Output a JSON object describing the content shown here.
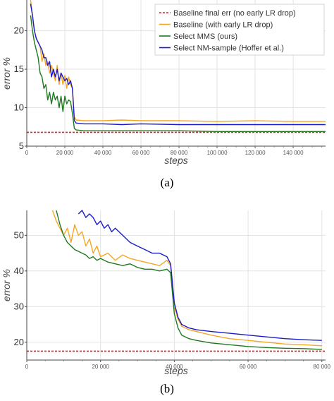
{
  "chart_data": [
    {
      "type": "line",
      "panel_label": "(a)",
      "xlabel": "steps",
      "ylabel": "error %",
      "xlim": [
        0,
        157000
      ],
      "ylim": [
        5,
        24
      ],
      "x_ticks": [
        0,
        20000,
        40000,
        60000,
        80000,
        100000,
        120000,
        140000
      ],
      "x_tick_labels": [
        "0",
        "20 000",
        "40 000",
        "60 000",
        "80 000",
        "100 000",
        "120 000",
        "140 000"
      ],
      "y_ticks": [
        5,
        10,
        15,
        20
      ],
      "y_tick_labels": [
        "5",
        "10",
        "15",
        "20"
      ],
      "grid": true,
      "legend_position": "top-right",
      "series": [
        {
          "name": "Baseline final err (no early LR drop)",
          "color": "#d62728",
          "dashed": true,
          "x": [
            0,
            157000
          ],
          "values": [
            6.8,
            6.8
          ]
        },
        {
          "name": "Baseline (with early LR drop)",
          "color": "#f5a623",
          "x": [
            2000,
            3000,
            4000,
            5000,
            6000,
            7000,
            8000,
            9000,
            10000,
            11000,
            12000,
            13000,
            14000,
            15000,
            16000,
            17000,
            18000,
            19000,
            20000,
            21000,
            22000,
            23000,
            24000,
            25000,
            26000,
            30000,
            40000,
            50000,
            60000,
            80000,
            100000,
            120000,
            140000,
            157000
          ],
          "values": [
            24,
            22,
            20,
            19,
            18.5,
            18,
            16,
            17,
            15.5,
            16,
            14.5,
            15.5,
            14.5,
            13.5,
            15.5,
            13,
            14.5,
            13,
            14.2,
            12.5,
            14,
            13,
            12.5,
            8.8,
            8.4,
            8.3,
            8.3,
            8.4,
            8.3,
            8.3,
            8.2,
            8.3,
            8.2,
            8.2
          ]
        },
        {
          "name": "Select MMS (ours)",
          "color": "#1e7a1e",
          "x": [
            2000,
            3000,
            4000,
            5000,
            6000,
            7000,
            8000,
            9000,
            10000,
            11000,
            12000,
            13000,
            14000,
            15000,
            16000,
            17000,
            18000,
            19000,
            20000,
            21000,
            22000,
            23000,
            24000,
            25000,
            26000,
            30000,
            40000,
            50000,
            60000,
            80000,
            100000,
            120000,
            140000,
            157000
          ],
          "values": [
            22,
            20,
            18.5,
            17.5,
            16.5,
            14.5,
            14,
            12.5,
            13,
            11,
            12,
            10.5,
            12,
            11,
            11.5,
            10,
            11.5,
            9.5,
            11.5,
            10.5,
            11,
            10.8,
            9.2,
            7.3,
            7.1,
            7.0,
            7.0,
            7.0,
            7.0,
            7.0,
            6.9,
            6.9,
            6.9,
            6.9
          ]
        },
        {
          "name": "Select NM-sample (Hoffer et al.)",
          "color": "#1a1ac8",
          "x": [
            2000,
            3000,
            4000,
            5000,
            6000,
            7000,
            8000,
            9000,
            10000,
            11000,
            12000,
            13000,
            14000,
            15000,
            16000,
            17000,
            18000,
            19000,
            20000,
            21000,
            22000,
            23000,
            24000,
            25000,
            26000,
            30000,
            40000,
            50000,
            60000,
            80000,
            100000,
            120000,
            140000,
            157000
          ],
          "values": [
            23.5,
            22,
            20,
            19,
            18.5,
            18,
            17.5,
            16.5,
            16.5,
            15.5,
            16,
            14,
            15,
            14,
            15,
            13.5,
            14.5,
            14,
            13.5,
            13.8,
            13,
            13.5,
            12.5,
            8.3,
            8.0,
            7.9,
            7.9,
            7.8,
            7.9,
            7.8,
            7.8,
            7.8,
            7.8,
            7.8
          ]
        }
      ]
    },
    {
      "type": "line",
      "panel_label": "(b)",
      "xlabel": "steps",
      "ylabel": "error %",
      "xlim": [
        0,
        81000
      ],
      "ylim": [
        15,
        57
      ],
      "x_ticks": [
        0,
        20000,
        40000,
        60000,
        80000
      ],
      "x_tick_labels": [
        "0",
        "20 000",
        "40 000",
        "60 000",
        "80 000"
      ],
      "y_ticks": [
        20,
        30,
        40,
        50
      ],
      "y_tick_labels": [
        "20",
        "30",
        "40",
        "50"
      ],
      "grid": true,
      "series": [
        {
          "name": "Baseline final err (no early LR drop)",
          "color": "#d62728",
          "dashed": true,
          "x": [
            0,
            81000
          ],
          "values": [
            17.5,
            17.5
          ]
        },
        {
          "name": "Baseline (with early LR drop)",
          "color": "#f5a623",
          "x": [
            7000,
            8000,
            9000,
            10000,
            11000,
            12000,
            13000,
            14000,
            15000,
            16000,
            17000,
            18000,
            19000,
            20000,
            22000,
            24000,
            26000,
            28000,
            30000,
            32000,
            34000,
            36000,
            38000,
            39000,
            40000,
            41000,
            42000,
            44000,
            46000,
            50000,
            55000,
            60000,
            65000,
            70000,
            75000,
            80000
          ],
          "values": [
            57,
            54,
            52,
            50,
            52,
            48,
            53,
            50,
            51,
            47,
            49,
            45,
            47,
            44,
            45,
            43,
            44.5,
            43.5,
            43,
            42.5,
            42,
            41.5,
            43,
            41.5,
            30,
            26.5,
            24.5,
            23.5,
            23,
            22,
            21,
            20.5,
            20,
            19.5,
            19.3,
            19
          ]
        },
        {
          "name": "Select MMS (ours)",
          "color": "#1e7a1e",
          "x": [
            8000,
            9000,
            10000,
            11000,
            12000,
            13000,
            14000,
            15000,
            16000,
            17000,
            18000,
            19000,
            20000,
            22000,
            24000,
            26000,
            28000,
            30000,
            32000,
            34000,
            36000,
            38000,
            39000,
            40000,
            41000,
            42000,
            44000,
            46000,
            50000,
            55000,
            60000,
            65000,
            70000,
            75000,
            80000
          ],
          "values": [
            57,
            53,
            50,
            48,
            47,
            46,
            45.5,
            45,
            44.5,
            43.5,
            44,
            43,
            43.5,
            42.5,
            42,
            41.5,
            42,
            41,
            40.5,
            40.5,
            40,
            40.5,
            39.5,
            28,
            24,
            22,
            21,
            20.5,
            19.8,
            19.3,
            18.8,
            18.5,
            18.3,
            18.2,
            18
          ]
        },
        {
          "name": "Select NM-sample (Hoffer et al.)",
          "color": "#1a1ac8",
          "x": [
            14000,
            15000,
            16000,
            17000,
            18000,
            19000,
            20000,
            21000,
            22000,
            23000,
            24000,
            26000,
            28000,
            30000,
            32000,
            34000,
            36000,
            37000,
            38000,
            39000,
            40000,
            41000,
            42000,
            44000,
            46000,
            50000,
            55000,
            60000,
            65000,
            70000,
            75000,
            80000
          ],
          "values": [
            56,
            57,
            55,
            56,
            55,
            53,
            54,
            52,
            53,
            51,
            52,
            50,
            48,
            47,
            46,
            45,
            45,
            44.5,
            44,
            42,
            31,
            27,
            25,
            24,
            23.5,
            23,
            22.5,
            22,
            21.5,
            21,
            20.7,
            20.5
          ]
        }
      ]
    }
  ]
}
